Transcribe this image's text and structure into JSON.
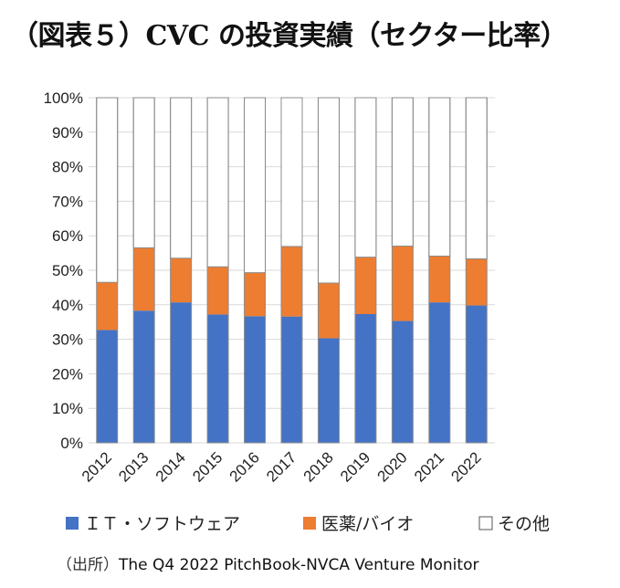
{
  "title": "（図表５）CVC の投資実績（セクター比率）",
  "source": {
    "label": "（出所）",
    "text": "The Q4 2022 PitchBook-NVCA Venture Monitor"
  },
  "colors": {
    "it": "#4472C4",
    "bio": "#ED7D31",
    "other": "#FFFFFF",
    "bar_border": "#8C8C8C",
    "grid": "#D9D9D9"
  },
  "chart_data": {
    "type": "bar",
    "stacked": true,
    "normalized": true,
    "categories": [
      "2012",
      "2013",
      "2014",
      "2015",
      "2016",
      "2017",
      "2018",
      "2019",
      "2020",
      "2021",
      "2022"
    ],
    "series": [
      {
        "name": "ＩＴ・ソフトウェア",
        "color": "#4472C4",
        "values": [
          32.7,
          38.3,
          40.7,
          37.2,
          36.7,
          36.6,
          30.3,
          37.3,
          35.3,
          40.7,
          39.8
        ]
      },
      {
        "name": "医薬/バイオ",
        "color": "#ED7D31",
        "values": [
          13.8,
          18.2,
          12.8,
          13.8,
          12.6,
          20.3,
          16.0,
          16.5,
          21.7,
          13.4,
          13.5
        ]
      },
      {
        "name": "その他",
        "color": "#FFFFFF",
        "values": [
          53.5,
          43.5,
          46.5,
          49.0,
          50.7,
          43.1,
          53.7,
          46.2,
          43.0,
          45.9,
          46.7
        ]
      }
    ],
    "yticks": [
      "0%",
      "10%",
      "20%",
      "30%",
      "40%",
      "50%",
      "60%",
      "70%",
      "80%",
      "90%",
      "100%"
    ],
    "ylim": [
      0,
      100
    ],
    "grid": true,
    "legend_position": "bottom"
  }
}
